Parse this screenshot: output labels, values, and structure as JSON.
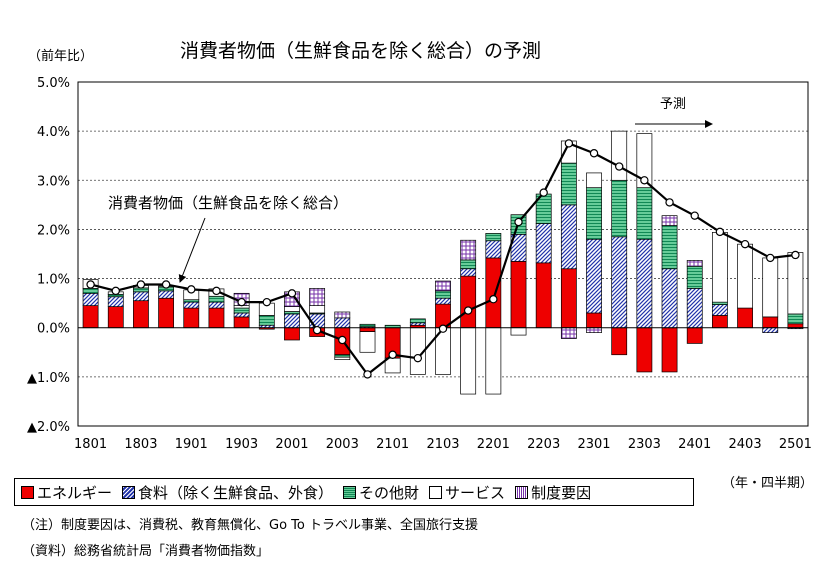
{
  "chart_data": {
    "type": "bar",
    "title": "消費者物価（生鮮食品を除く総合）の予測",
    "ylabel": "（前年比）",
    "xlabel": "（年・四半期）",
    "ylim": [
      -2,
      5
    ],
    "yticks": [
      5,
      4,
      3,
      2,
      1,
      0,
      -1,
      -2
    ],
    "ytick_labels": [
      "5.0%",
      "4.0%",
      "3.0%",
      "2.0%",
      "1.0%",
      "0.0%",
      "▲1.0%",
      "▲2.0%"
    ],
    "categories": [
      "1801",
      "1802",
      "1803",
      "1804",
      "1901",
      "1902",
      "1903",
      "1904",
      "2001",
      "2002",
      "2003",
      "2004",
      "2101",
      "2102",
      "2103",
      "2104",
      "2201",
      "2202",
      "2203",
      "2204",
      "2301",
      "2302",
      "2303",
      "2304",
      "2401",
      "2402",
      "2403",
      "2404",
      "2501"
    ],
    "xtick_labels": [
      "1801",
      "1803",
      "1901",
      "1903",
      "2001",
      "2003",
      "2101",
      "2103",
      "2201",
      "2203",
      "2301",
      "2303",
      "2401",
      "2403",
      "2501"
    ],
    "series": [
      {
        "name": "エネルギー",
        "color": "#ee0000",
        "values": [
          0.45,
          0.43,
          0.55,
          0.6,
          0.4,
          0.4,
          0.22,
          -0.03,
          -0.25,
          -0.18,
          -0.55,
          -0.08,
          -0.62,
          0.05,
          0.48,
          1.05,
          1.42,
          1.35,
          1.32,
          1.2,
          0.3,
          -0.55,
          -0.9,
          -0.9,
          -0.32,
          0.25,
          0.4,
          0.22,
          0.08
        ]
      },
      {
        "name": "食料（除く生鮮食品、外食）",
        "color": "#3344aa",
        "values": [
          0.25,
          0.2,
          0.18,
          0.15,
          0.12,
          0.12,
          0.08,
          0.05,
          0.28,
          0.28,
          0.2,
          0.02,
          0.0,
          0.05,
          0.12,
          0.15,
          0.35,
          0.55,
          0.8,
          1.3,
          1.5,
          1.85,
          1.8,
          1.2,
          0.8,
          0.22,
          0.0,
          -0.1,
          -0.02
        ]
      },
      {
        "name": "その他財",
        "color": "#33aa77",
        "values": [
          0.1,
          0.05,
          0.08,
          0.08,
          0.05,
          0.12,
          0.1,
          0.2,
          0.05,
          0.02,
          -0.05,
          0.05,
          0.05,
          0.08,
          0.15,
          0.18,
          0.15,
          0.4,
          0.6,
          0.85,
          1.05,
          1.15,
          1.05,
          0.88,
          0.45,
          0.05,
          0.0,
          0.0,
          0.2
        ]
      },
      {
        "name": "サービス",
        "color": "#ffffff",
        "values": [
          0.18,
          0.05,
          0.05,
          0.02,
          0.2,
          0.15,
          0.05,
          0.25,
          0.1,
          0.15,
          -0.05,
          -0.42,
          -0.3,
          -0.95,
          -0.95,
          -1.35,
          -1.35,
          -0.15,
          0.0,
          0.45,
          0.3,
          1.0,
          1.1,
          0.0,
          0.0,
          1.42,
          1.3,
          1.2,
          1.25
        ]
      },
      {
        "name": "制度要因",
        "color": "#aa66cc",
        "values": [
          0.0,
          0.0,
          0.0,
          0.0,
          0.0,
          0.0,
          0.25,
          0.0,
          0.3,
          0.35,
          0.12,
          0.0,
          0.0,
          0.0,
          0.2,
          0.4,
          0.0,
          0.0,
          0.0,
          -0.22,
          -0.1,
          0.0,
          0.0,
          0.2,
          0.12,
          0.0,
          0.0,
          0.0,
          0.0
        ]
      },
      {
        "name": "消費者物価（生鮮食品を除く総合）",
        "type": "line",
        "color": "#000000",
        "values": [
          0.88,
          0.75,
          0.88,
          0.88,
          0.78,
          0.75,
          0.52,
          0.52,
          0.7,
          -0.05,
          -0.25,
          -0.95,
          -0.55,
          -0.62,
          -0.02,
          0.35,
          0.58,
          2.15,
          2.75,
          3.75,
          3.55,
          3.28,
          3.0,
          2.55,
          2.28,
          1.95,
          1.7,
          1.42,
          1.48
        ]
      }
    ],
    "annotations": [
      {
        "text": "消費者物価（生鮮食品を除く総合）"
      },
      {
        "text": "予測"
      }
    ],
    "forecast_start": "2302",
    "grid": true,
    "legend_position": "bottom"
  },
  "legend_items": [
    {
      "label": "エネルギー",
      "color": "#ee0000"
    },
    {
      "label": "食料（除く生鮮食品、外食）",
      "color": "#3344aa"
    },
    {
      "label": "その他財",
      "color": "#33aa77"
    },
    {
      "label": "サービス",
      "color": "#ffffff"
    },
    {
      "label": "制度要因",
      "color": "#aa66cc"
    }
  ],
  "note": "（注）制度要因は、消費税、教育無償化、Go To トラベル事業、全国旅行支援",
  "source": "（資料）総務省統計局「消費者物価指数」"
}
